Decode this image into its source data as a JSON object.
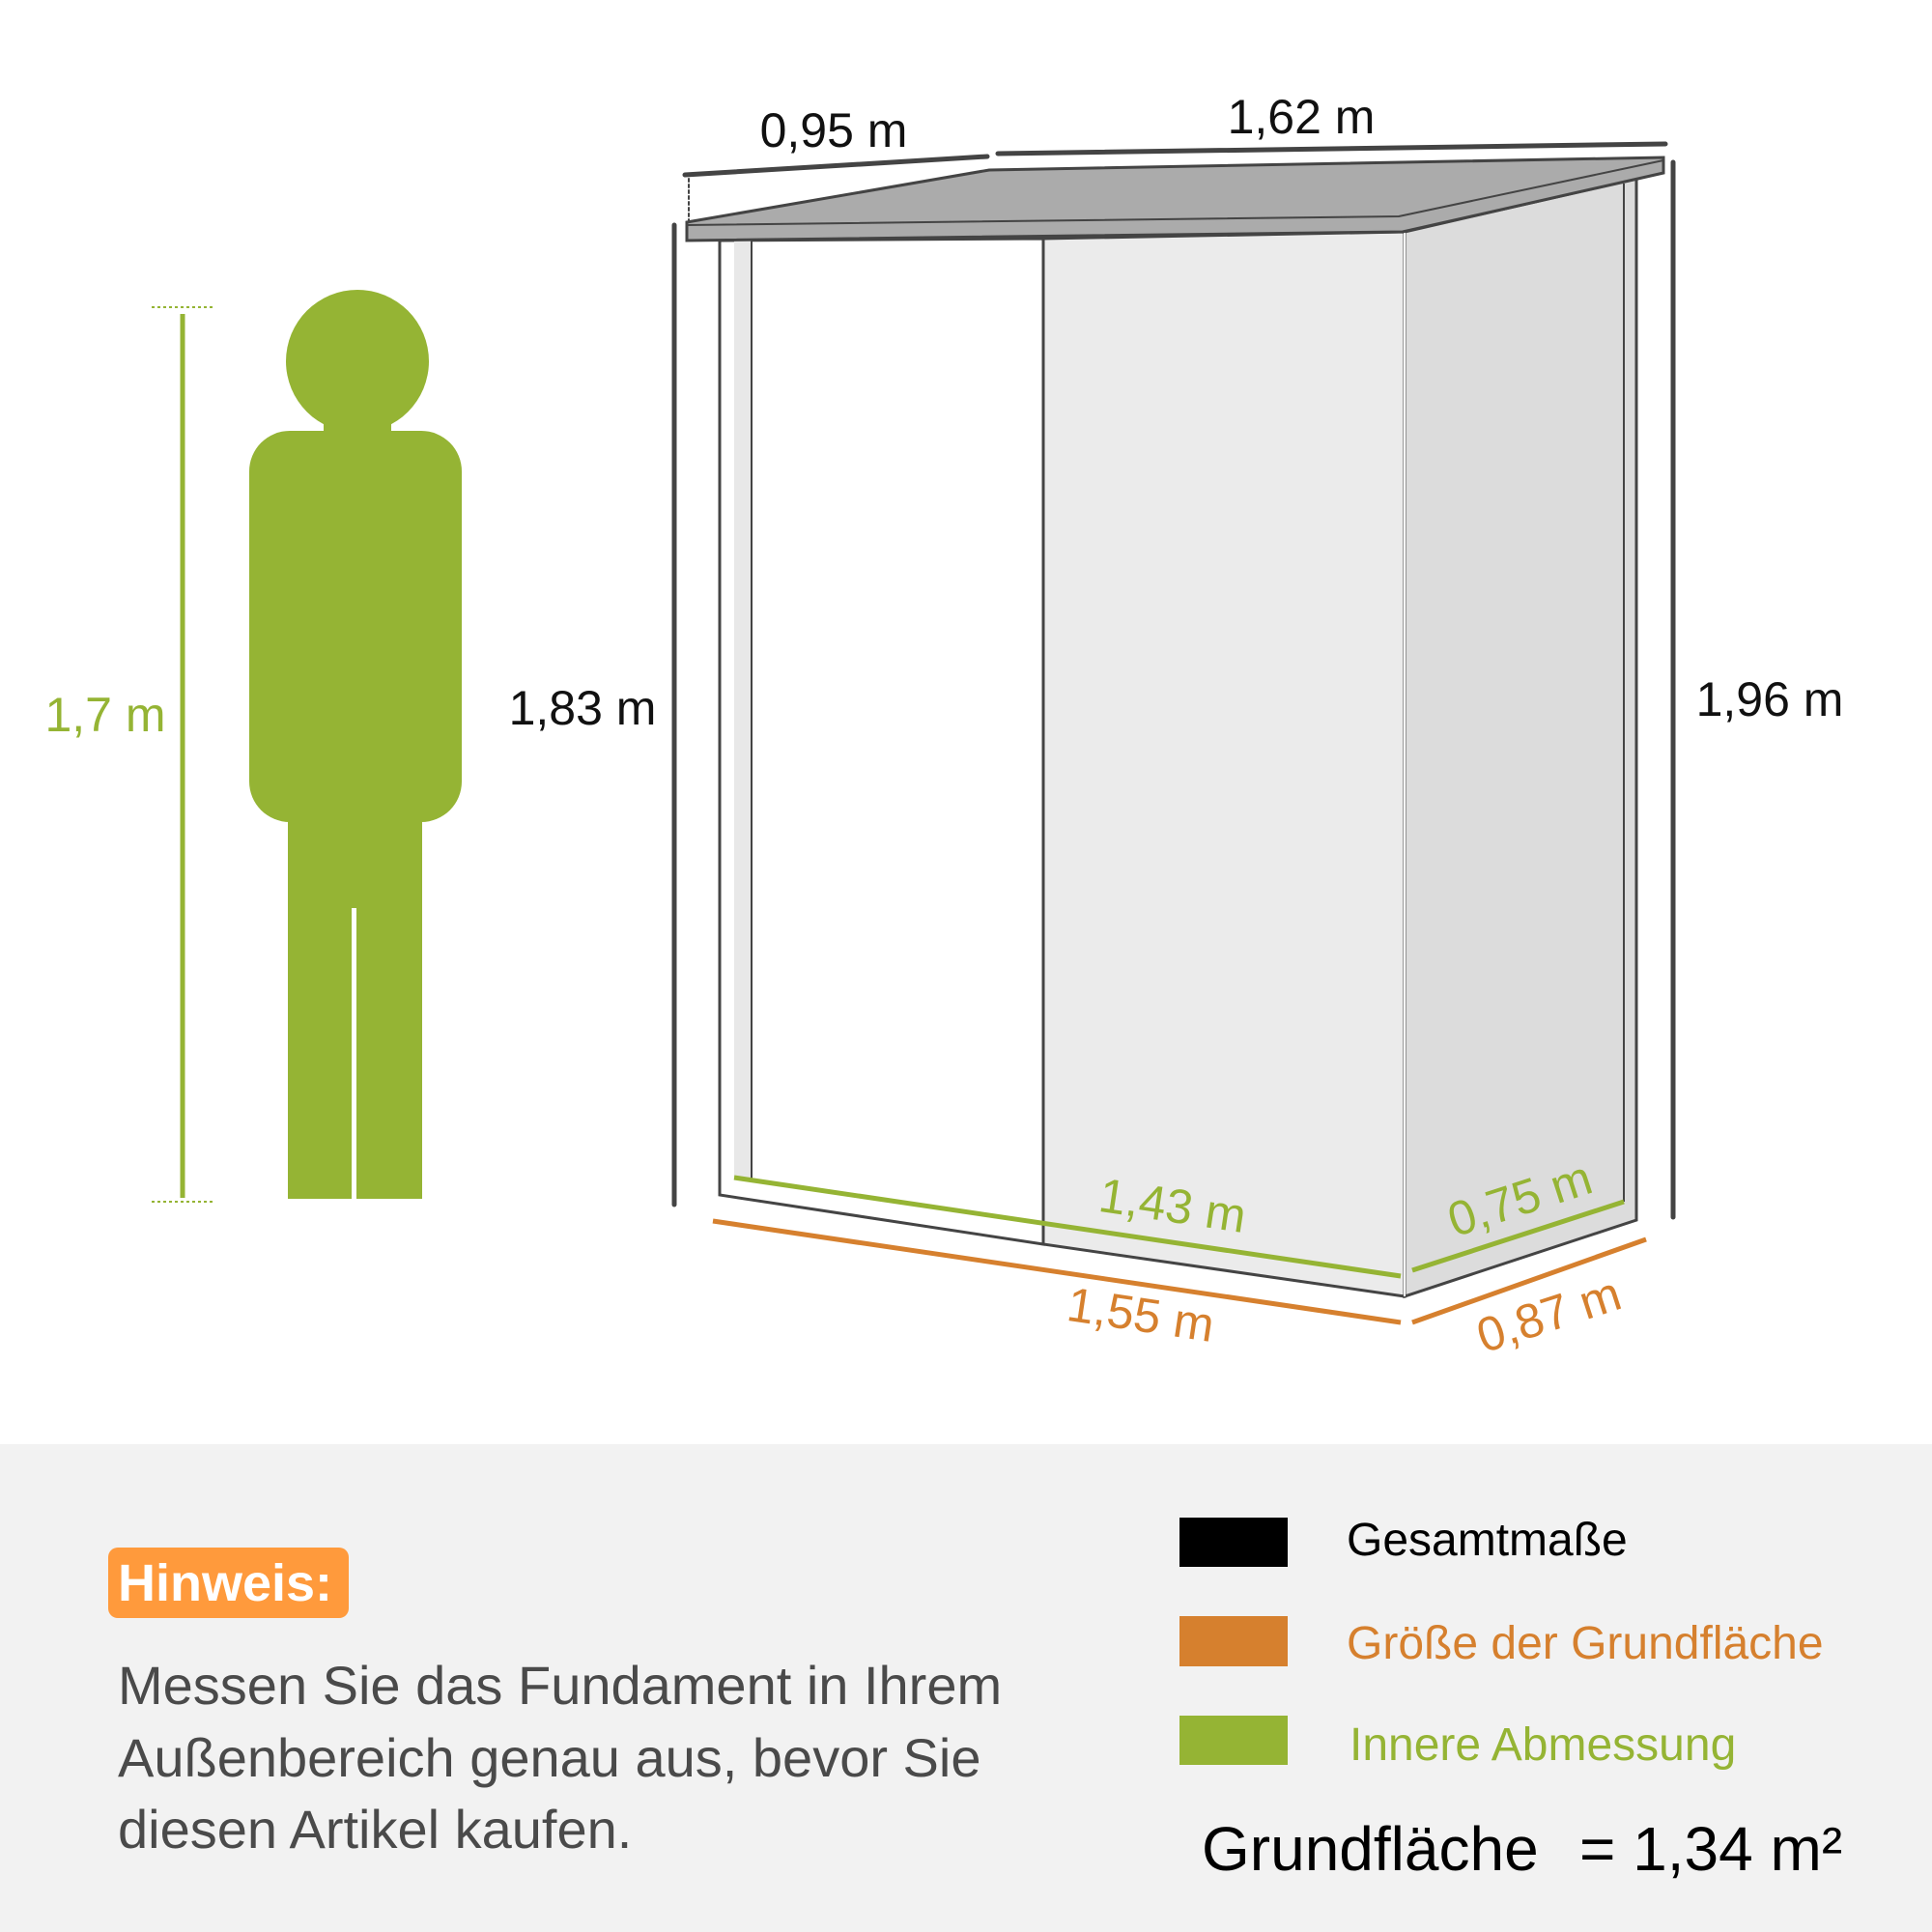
{
  "colors": {
    "overall": "#000000",
    "footprint": "#d6802e",
    "inner": "#95b434",
    "badge": "#ff9a3c",
    "roof": "#ababab",
    "panel": "#bfbfbf"
  },
  "person": {
    "height_label": "1,7 m"
  },
  "dimensions": {
    "roof_depth": "0,95 m",
    "roof_width": "1,62 m",
    "front_height": "1,83 m",
    "back_height": "1,96 m",
    "inner_width": "1,43 m",
    "inner_depth": "0,75 m",
    "base_width": "1,55 m",
    "base_depth": "0,87 m"
  },
  "note": {
    "badge": "Hinweis:",
    "lines": [
      "Messen Sie das Fundament in Ihrem",
      "Außenbereich genau aus, bevor Sie",
      "diesen Artikel kaufen."
    ]
  },
  "legend": [
    {
      "label": "Gesamtmaße",
      "color": "#000000"
    },
    {
      "label": "Größe der Grundfläche",
      "color": "#d6802e"
    },
    {
      "label": "Innere Abmessung",
      "color": "#95b434"
    }
  ],
  "area": {
    "label": "Grundfläche",
    "value": "= 1,34 m²"
  }
}
